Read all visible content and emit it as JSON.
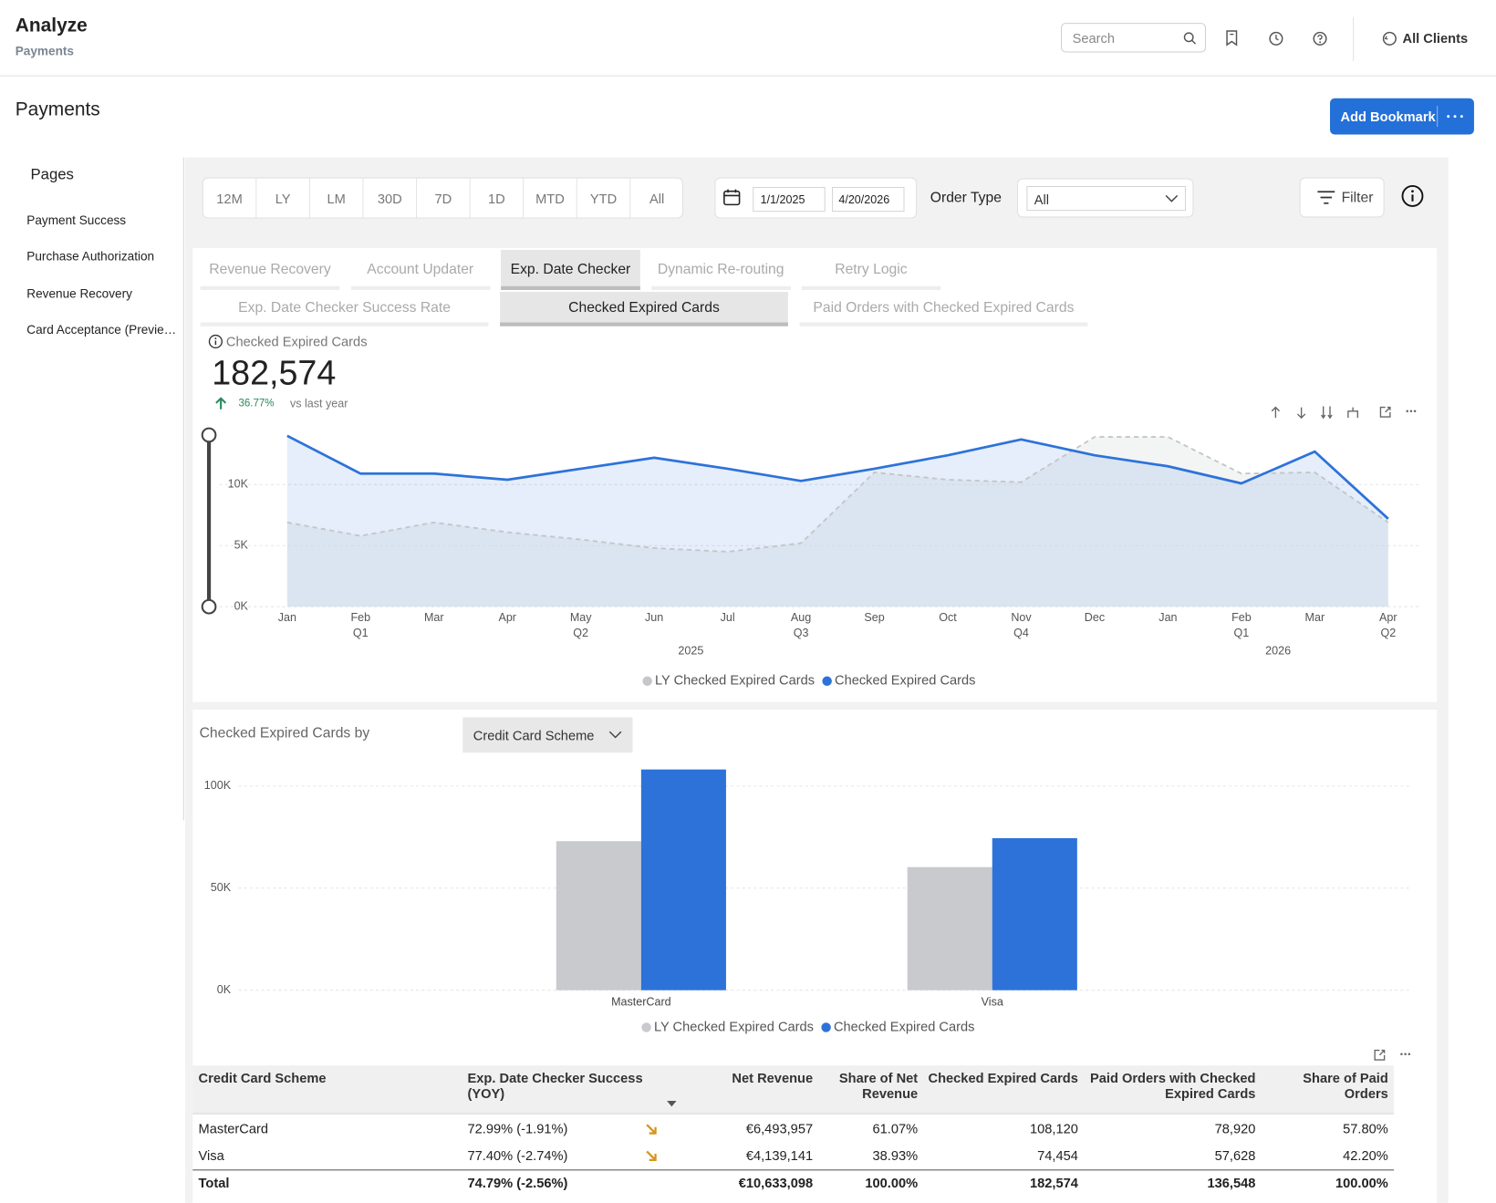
{
  "header": {
    "title": "Analyze",
    "subtitle": "Payments",
    "search_placeholder": "Search",
    "clients": "All Clients"
  },
  "page": {
    "title": "Payments",
    "bookmark_button": "Add Bookmark"
  },
  "sidebar": {
    "title": "Pages",
    "items": [
      "Payment Success",
      "Purchase Authorization",
      "Revenue Recovery",
      "Card Acceptance (Previe…"
    ]
  },
  "filters": {
    "periods": [
      "12M",
      "LY",
      "LM",
      "30D",
      "7D",
      "1D",
      "MTD",
      "YTD",
      "All"
    ],
    "date_start": "1/1/2025",
    "date_end": "4/20/2026",
    "order_type_label": "Order Type",
    "order_type_value": "All",
    "filter_button": "Filter"
  },
  "tabs": {
    "items": [
      "Revenue Recovery",
      "Account Updater",
      "Exp. Date Checker",
      "Dynamic Re-routing",
      "Retry Logic"
    ],
    "active": 2
  },
  "subtabs": {
    "items": [
      "Exp. Date Checker Success Rate",
      "Checked Expired Cards",
      "Paid Orders with Checked Expired Cards"
    ],
    "active": 1
  },
  "kpi": {
    "label": "Checked Expired Cards",
    "value": "182,574",
    "change": "36.77%",
    "comparison": "vs last year"
  },
  "chart_data": [
    {
      "type": "area",
      "categories": [
        "Jan",
        "Feb",
        "Mar",
        "Apr",
        "May",
        "Jun",
        "Jul",
        "Aug",
        "Sep",
        "Oct",
        "Nov",
        "Dec",
        "Jan",
        "Feb",
        "Mar",
        "Apr"
      ],
      "quarters": [
        null,
        "Q1",
        null,
        null,
        "Q2",
        null,
        null,
        "Q3",
        null,
        null,
        "Q4",
        null,
        null,
        "Q1",
        null,
        "Q2"
      ],
      "years": [
        "2025",
        "2026"
      ],
      "series": [
        {
          "name": "LY Checked Expired Cards",
          "color": "#c4c6c9",
          "line_style": "dashed",
          "values": [
            6900,
            5800,
            6900,
            6100,
            5500,
            4800,
            4500,
            5200,
            11000,
            10400,
            10200,
            13900,
            13900,
            10900,
            11000,
            6900
          ]
        },
        {
          "name": "Checked Expired Cards",
          "color": "#2d72d9",
          "line_style": "solid",
          "values": [
            14000,
            10900,
            10900,
            10400,
            11300,
            12200,
            11300,
            10300,
            11300,
            12400,
            13700,
            12400,
            11500,
            10100,
            12700,
            7200
          ]
        }
      ],
      "ylim": [
        0,
        14500
      ],
      "yticks": [
        {
          "value": 0,
          "label": "0K"
        },
        {
          "value": 5000,
          "label": "5K"
        },
        {
          "value": 10000,
          "label": "10K"
        }
      ],
      "grid": true,
      "legend": "bottom"
    },
    {
      "type": "bar",
      "categories": [
        "MasterCard",
        "Visa"
      ],
      "series": [
        {
          "name": "LY Checked Expired Cards",
          "color": "#c8cacd",
          "values": [
            73000,
            60300
          ]
        },
        {
          "name": "Checked Expired Cards",
          "color": "#2d72d9",
          "values": [
            108120,
            74454
          ]
        }
      ],
      "ylim": [
        0,
        110000
      ],
      "yticks": [
        {
          "value": 0,
          "label": "0K"
        },
        {
          "value": 50000,
          "label": "50K"
        },
        {
          "value": 100000,
          "label": "100K"
        }
      ],
      "grid": true,
      "legend": "bottom"
    }
  ],
  "breakdown": {
    "title": "Checked Expired Cards by",
    "dimension": "Credit Card Scheme"
  },
  "table": {
    "columns": [
      "Credit Card Scheme",
      "Exp. Date Checker Success (YOY)",
      "Net Revenue",
      "Share of Net Revenue",
      "Checked Expired Cards",
      "Paid Orders with Checked Expired Cards",
      "Share of Paid Orders"
    ],
    "rows": [
      [
        "MasterCard",
        "72.99% (-1.91%)",
        "€6,493,957",
        "61.07%",
        "108,120",
        "78,920",
        "57.80%"
      ],
      [
        "Visa",
        "77.40% (-2.74%)",
        "€4,139,141",
        "38.93%",
        "74,454",
        "57,628",
        "42.20%"
      ]
    ],
    "total": [
      "Total",
      "74.79% (-2.56%)",
      "€10,633,098",
      "100.00%",
      "182,574",
      "136,548",
      "100.00%"
    ]
  }
}
